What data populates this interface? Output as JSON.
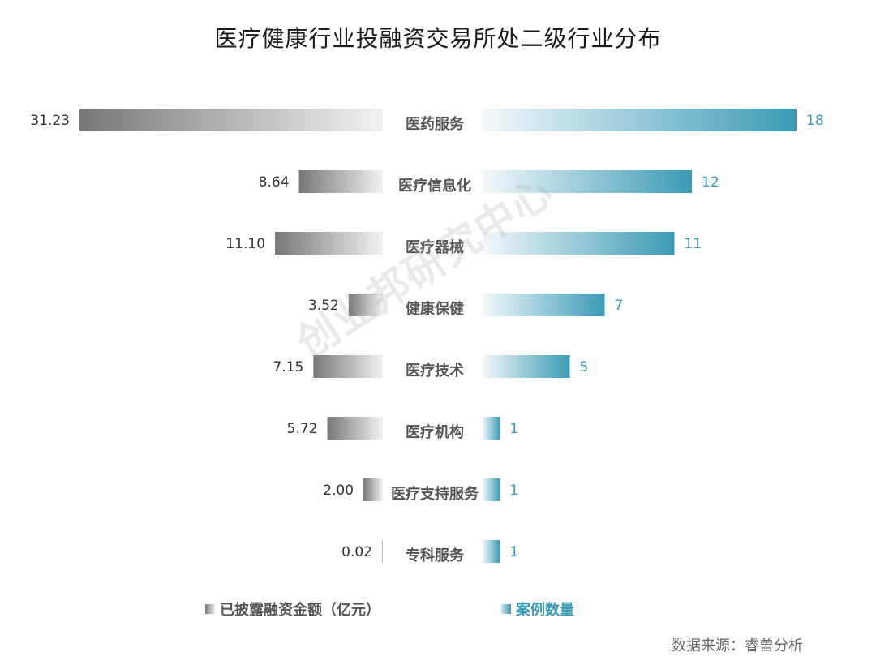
{
  "title": "医疗健康行业投融资交易所处二级行业分布",
  "watermark": "创业邦研究中心",
  "source": "数据来源：睿兽分析",
  "colors": {
    "amount": "#777777",
    "count": "#3a9bb6"
  },
  "chart_data": {
    "type": "bar",
    "orientation": "horizontal-butterfly",
    "categories": [
      "医药服务",
      "医疗信息化",
      "医疗器械",
      "健康保健",
      "医疗技术",
      "医疗机构",
      "医疗支持服务",
      "专科服务"
    ],
    "series": [
      {
        "name": "已披露融资金额（亿元）",
        "side": "left",
        "values": [
          31.23,
          8.64,
          11.1,
          3.52,
          7.15,
          5.72,
          2.0,
          0.02
        ],
        "labels": [
          "31.23",
          "8.64",
          "11.10",
          "3.52",
          "7.15",
          "5.72",
          "2.00",
          "0.02"
        ]
      },
      {
        "name": "案例数量",
        "side": "right",
        "values": [
          18,
          12,
          11,
          7,
          5,
          1,
          1,
          1
        ],
        "labels": [
          "18",
          "12",
          "11",
          "7",
          "5",
          "1",
          "1",
          "1"
        ]
      }
    ],
    "legend": "bottom"
  }
}
